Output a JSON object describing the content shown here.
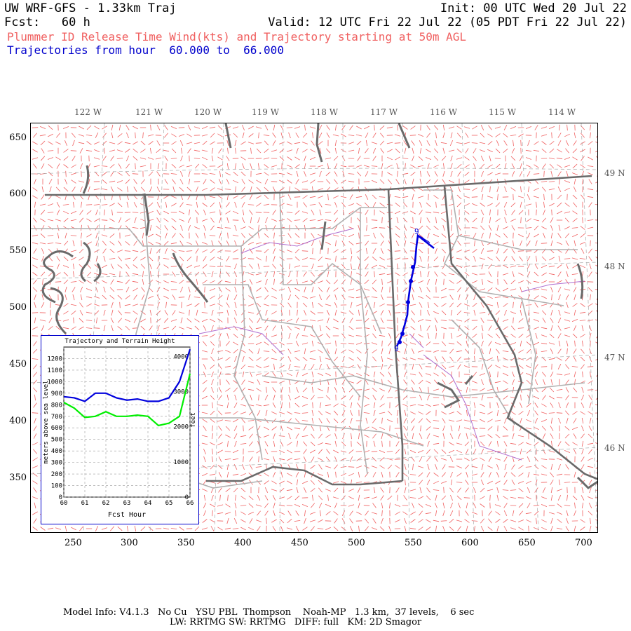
{
  "header": {
    "line1_left": "UW WRF-GFS - 1.33km Traj",
    "line1_right": "Init: 00 UTC Wed 20 Jul 22",
    "line2_left": "Fcst:   60 h",
    "line2_right": "Valid: 12 UTC Fri 22 Jul 22 (05 PDT Fri 22 Jul 22)",
    "line3": "Plummer ID Release Time Wind(kts) and Trajectory starting at 50m AGL",
    "line4": "Trajectories from hour  60.000 to  66.000"
  },
  "map": {
    "lon_labels": [
      "122 W",
      "121 W",
      "120 W",
      "119 W",
      "118 W",
      "117 W",
      "116 W",
      "115 W",
      "114 W"
    ],
    "lat_labels": [
      "49 N",
      "48 N",
      "47 N",
      "46 N"
    ],
    "y_ticks": [
      "650",
      "600",
      "550",
      "500",
      "450",
      "400",
      "350"
    ],
    "x_ticks": [
      "250",
      "300",
      "350",
      "400",
      "450",
      "500",
      "550",
      "600",
      "650",
      "700"
    ],
    "trajectory_markers": [
      "9",
      "9"
    ],
    "colors": {
      "wind_barbs": "#f06060",
      "coast_borders": "#666666",
      "county_lines": "#aaaaaa",
      "rivers": "#aa66cc",
      "trajectory": "#0000dd"
    }
  },
  "inset": {
    "title": "Trajectory and Terrain Height",
    "ylabel_left": "meters above sea level",
    "ylabel_right": "feet",
    "xlabel": "Fcst Hour",
    "y_ticks_m": [
      "1200",
      "1100",
      "1000",
      "900",
      "800",
      "700",
      "600",
      "500",
      "400",
      "300",
      "200",
      "100",
      "0"
    ],
    "y_ticks_ft": [
      "4000",
      "3000",
      "2000",
      "1000",
      "0"
    ],
    "x_ticks": [
      "60",
      "61",
      "62",
      "63",
      "64",
      "65",
      "66"
    ],
    "series_colors": {
      "trajectory": "#0000dd",
      "terrain": "#00ee00"
    }
  },
  "chart_data": {
    "type": "line",
    "title": "Trajectory and Terrain Height",
    "xlabel": "Fcst Hour",
    "ylabel": "meters above sea level",
    "xlim": [
      60,
      66
    ],
    "ylim": [
      0,
      1300
    ],
    "x": [
      60,
      60.5,
      61,
      61.5,
      62,
      62.5,
      63,
      63.5,
      64,
      64.5,
      65,
      65.5,
      66
    ],
    "series": [
      {
        "values": [
          870,
          860,
          830,
          900,
          900,
          860,
          840,
          850,
          830,
          830,
          860,
          1000,
          1280
        ]
      },
      {
        "values": [
          820,
          770,
          690,
          700,
          740,
          700,
          700,
          710,
          700,
          620,
          640,
          700,
          1070
        ]
      }
    ]
  },
  "footer": {
    "line1": "Model Info: V4.1.3   No Cu   YSU PBL  Thompson    Noah-MP   1.3 km,  37 levels,    6 sec",
    "line2": "LW: RRTMG SW: RRTMG   DIFF: full   KM: 2D Smagor"
  }
}
